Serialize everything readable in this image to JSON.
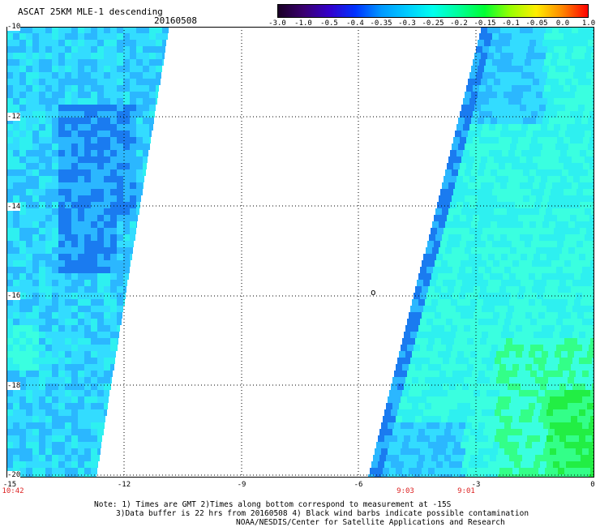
{
  "header": {
    "title": "ASCAT 25KM MLE-1 descending",
    "date": "20160508"
  },
  "colorbar": {
    "ticks": [
      "-3.0",
      "-1.0",
      "-0.5",
      "-0.4",
      "-0.35",
      "-0.3",
      "-0.25",
      "-0.2",
      "-0.15",
      "-0.1",
      "-0.05",
      "0.0",
      "1.0"
    ],
    "colors": [
      "#1a0026",
      "#3a0070",
      "#3300cc",
      "#0033ff",
      "#0099ff",
      "#00ccff",
      "#00ffee",
      "#00ff99",
      "#00ff33",
      "#99ff00",
      "#ffee00",
      "#ff8800",
      "#ff0000"
    ]
  },
  "map": {
    "y_labels": [
      "-10",
      "-12",
      "-14",
      "-16",
      "-18",
      "-20"
    ],
    "x_labels": [
      "-15",
      "-12",
      "-9",
      "-6",
      "-3",
      "0"
    ],
    "time_labels": [
      "10:42",
      "9:03",
      "9:01"
    ],
    "center_mark": "o"
  },
  "notes": [
    "Note: 1) Times are GMT 2)Times along bottom correspond to measurement at -15S",
    "3)Data buffer is 22 hrs from 20160508 4) Black wind barbs indicate possible contamination",
    "NOAA/NESDIS/Center for Satellite Applications and Research"
  ]
}
